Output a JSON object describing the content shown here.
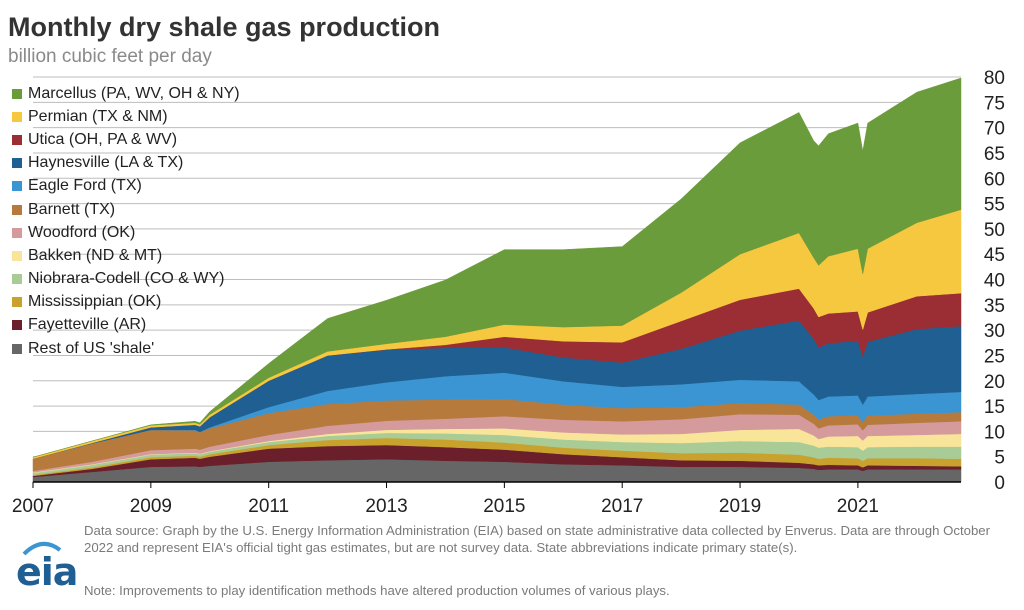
{
  "title": "Monthly dry shale gas production",
  "subtitle": "billion cubic feet per day",
  "source_text": "Data source: Graph by the U.S. Energy Information Administration (EIA) based on state administrative data collected by Enverus. Data are through October 2022 and represent EIA's official tight gas estimates, but are not survey data. State abbreviations indicate primary state(s).",
  "note_text": "Note: Improvements to play identification methods have altered production volumes of various plays.",
  "logo_text": "eia",
  "chart_data": {
    "type": "area",
    "stacked": true,
    "title": "Monthly dry shale gas production",
    "subtitle": "billion cubic feet per day",
    "xlabel": "",
    "ylabel": "",
    "x": [
      "2007-01",
      "2008-01",
      "2009-01",
      "2009-10",
      "2009-11",
      "2010-01",
      "2011-01",
      "2012-01",
      "2013-01",
      "2014-01",
      "2015-01",
      "2016-01",
      "2017-01",
      "2018-01",
      "2019-01",
      "2020-01",
      "2020-04",
      "2020-05",
      "2020-07",
      "2021-01",
      "2021-02",
      "2021-03",
      "2022-01",
      "2022-10"
    ],
    "xticks": [
      "2007",
      "2009",
      "2011",
      "2013",
      "2015",
      "2017",
      "2019",
      "2021"
    ],
    "yticks": [
      "0",
      "5",
      "10",
      "15",
      "20",
      "25",
      "30",
      "35",
      "40",
      "45",
      "50",
      "55",
      "60",
      "65",
      "70",
      "75",
      "80"
    ],
    "ylim": [
      0,
      80
    ],
    "xlim": [
      "2007-01",
      "2022-10"
    ],
    "grid": true,
    "legend_position": "top-left",
    "series": [
      {
        "name": "Rest of US 'shale'",
        "color": "#666666",
        "values": [
          1.0,
          2.0,
          3.0,
          3.1,
          3.0,
          3.2,
          4.0,
          4.3,
          4.5,
          4.2,
          4.0,
          3.5,
          3.3,
          3.0,
          3.0,
          2.8,
          2.6,
          2.4,
          2.5,
          2.5,
          2.2,
          2.5,
          2.5,
          2.5
        ]
      },
      {
        "name": "Fayetteville (AR)",
        "color": "#6b1f2a",
        "values": [
          0.2,
          0.6,
          1.5,
          1.7,
          1.6,
          1.8,
          2.6,
          2.8,
          2.8,
          2.7,
          2.4,
          2.0,
          1.6,
          1.3,
          1.2,
          1.0,
          0.9,
          0.9,
          0.9,
          0.8,
          0.7,
          0.8,
          0.7,
          0.6
        ]
      },
      {
        "name": "Mississippian (OK)",
        "color": "#c9a22e",
        "values": [
          0.2,
          0.3,
          0.4,
          0.4,
          0.4,
          0.5,
          0.7,
          1.2,
          1.4,
          1.5,
          1.4,
          1.3,
          1.3,
          1.4,
          1.6,
          1.6,
          1.4,
          1.3,
          1.4,
          1.4,
          1.3,
          1.4,
          1.5,
          1.5
        ]
      },
      {
        "name": "Niobrara-Codell (CO & WY)",
        "color": "#a9cb96",
        "values": [
          0.4,
          0.5,
          0.5,
          0.5,
          0.5,
          0.5,
          0.6,
          0.8,
          1.0,
          1.2,
          1.5,
          1.6,
          1.7,
          2.0,
          2.3,
          2.5,
          2.3,
          2.2,
          2.2,
          2.2,
          2.0,
          2.2,
          2.3,
          2.4
        ]
      },
      {
        "name": "Bakken (ND & MT)",
        "color": "#f9e59a",
        "values": [
          0.1,
          0.1,
          0.1,
          0.1,
          0.1,
          0.1,
          0.2,
          0.4,
          0.6,
          0.9,
          1.3,
          1.4,
          1.5,
          1.8,
          2.2,
          2.6,
          2.0,
          1.7,
          2.0,
          2.2,
          2.0,
          2.2,
          2.3,
          2.5
        ]
      },
      {
        "name": "Woodford (OK)",
        "color": "#d49a9c",
        "values": [
          0.3,
          0.5,
          0.8,
          0.8,
          0.8,
          0.9,
          1.2,
          1.6,
          1.8,
          2.0,
          2.4,
          2.5,
          2.6,
          2.9,
          3.1,
          2.8,
          2.3,
          2.1,
          2.2,
          2.3,
          2.0,
          2.2,
          2.4,
          2.5
        ]
      },
      {
        "name": "Barnett (TX)",
        "color": "#b67a3c",
        "values": [
          2.4,
          3.6,
          4.0,
          3.6,
          3.4,
          3.6,
          4.3,
          4.3,
          4.0,
          3.8,
          3.4,
          3.0,
          2.6,
          2.4,
          2.2,
          2.0,
          1.8,
          1.8,
          1.8,
          1.8,
          1.6,
          1.8,
          1.8,
          1.8
        ]
      },
      {
        "name": "Eagle Ford (TX)",
        "color": "#3b95d2",
        "values": [
          0.0,
          0.0,
          0.0,
          0.1,
          0.1,
          0.2,
          1.2,
          2.6,
          3.6,
          4.6,
          5.2,
          4.6,
          4.2,
          4.5,
          4.6,
          4.6,
          4.0,
          3.8,
          3.9,
          3.9,
          3.5,
          3.8,
          3.9,
          4.0
        ]
      },
      {
        "name": "Haynesville (LA & TX)",
        "color": "#1f5f92",
        "values": [
          0.0,
          0.1,
          0.5,
          1.0,
          1.1,
          2.0,
          5.2,
          7.0,
          6.4,
          5.6,
          5.0,
          4.7,
          4.8,
          7.0,
          9.7,
          12.0,
          11.0,
          10.4,
          10.5,
          10.8,
          9.5,
          10.8,
          12.8,
          13.0
        ]
      },
      {
        "name": "Utica (OH, PA & WV)",
        "color": "#9b2d35",
        "values": [
          0.0,
          0.0,
          0.0,
          0.0,
          0.0,
          0.0,
          0.0,
          0.0,
          0.1,
          0.6,
          2.1,
          3.2,
          4.0,
          5.5,
          6.1,
          6.3,
          6.0,
          6.0,
          5.9,
          5.8,
          5.3,
          5.8,
          6.5,
          6.5
        ]
      },
      {
        "name": "Permian (TX & NM)",
        "color": "#f6c83f",
        "values": [
          0.3,
          0.4,
          0.4,
          0.4,
          0.4,
          0.5,
          0.6,
          0.8,
          1.1,
          1.6,
          2.4,
          2.8,
          3.3,
          5.6,
          9.0,
          11.0,
          10.0,
          10.2,
          11.3,
          12.4,
          11.0,
          12.6,
          14.5,
          16.5
        ]
      },
      {
        "name": "Marcellus (PA, WV, OH & NY)",
        "color": "#6b9c3b",
        "values": [
          0.0,
          0.0,
          0.1,
          0.3,
          0.3,
          0.6,
          2.8,
          6.5,
          8.6,
          11.2,
          14.8,
          15.3,
          15.6,
          18.5,
          22.0,
          23.8,
          23.1,
          23.6,
          24.2,
          24.8,
          24.3,
          24.8,
          25.8,
          26.0
        ]
      }
    ]
  }
}
